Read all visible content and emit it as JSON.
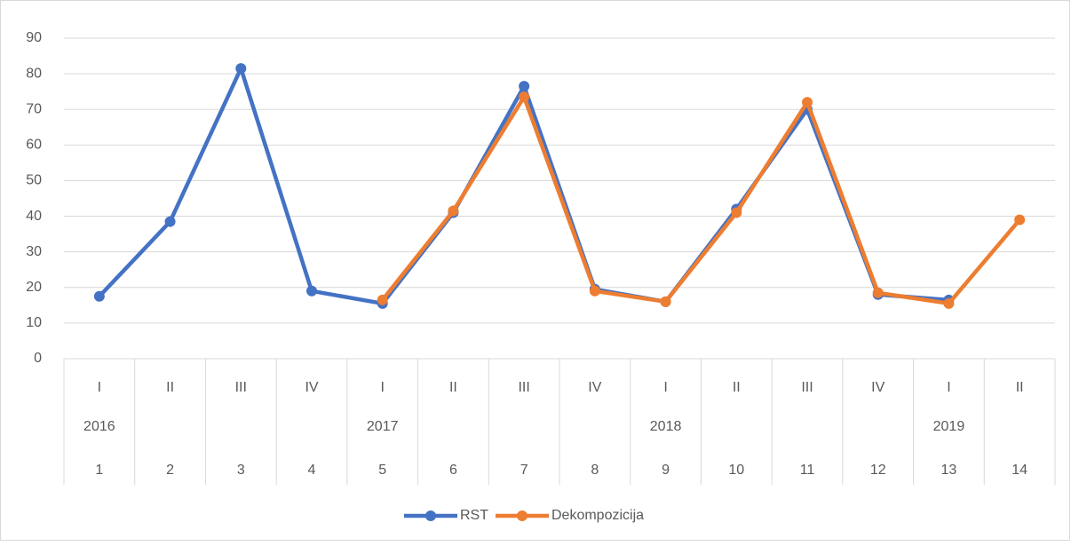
{
  "chart_data": {
    "type": "line",
    "categories": [
      "1",
      "2",
      "3",
      "4",
      "5",
      "6",
      "7",
      "8",
      "9",
      "10",
      "11",
      "12",
      "13",
      "14"
    ],
    "quarters": [
      "I",
      "II",
      "III",
      "IV",
      "I",
      "II",
      "III",
      "IV",
      "I",
      "II",
      "III",
      "IV",
      "I",
      "II"
    ],
    "years": [
      "2016",
      null,
      null,
      null,
      "2017",
      null,
      null,
      null,
      "2018",
      null,
      null,
      null,
      "2019",
      null
    ],
    "series": [
      {
        "name": "RST",
        "color": "#4472c4",
        "values": [
          17.5,
          38.5,
          81.5,
          19,
          15.5,
          41,
          76.5,
          19.5,
          16,
          42,
          70,
          18,
          16.5,
          null
        ]
      },
      {
        "name": "Dekompozicija",
        "color": "#ed7d31",
        "values": [
          null,
          null,
          null,
          null,
          16.5,
          41.5,
          73.5,
          19,
          16,
          41,
          72,
          18.5,
          15.5,
          39
        ]
      }
    ],
    "ylim": [
      0,
      90
    ],
    "yticks": [
      0,
      10,
      20,
      30,
      40,
      50,
      60,
      70,
      80,
      90
    ],
    "grid": true,
    "legend": "bottom"
  }
}
